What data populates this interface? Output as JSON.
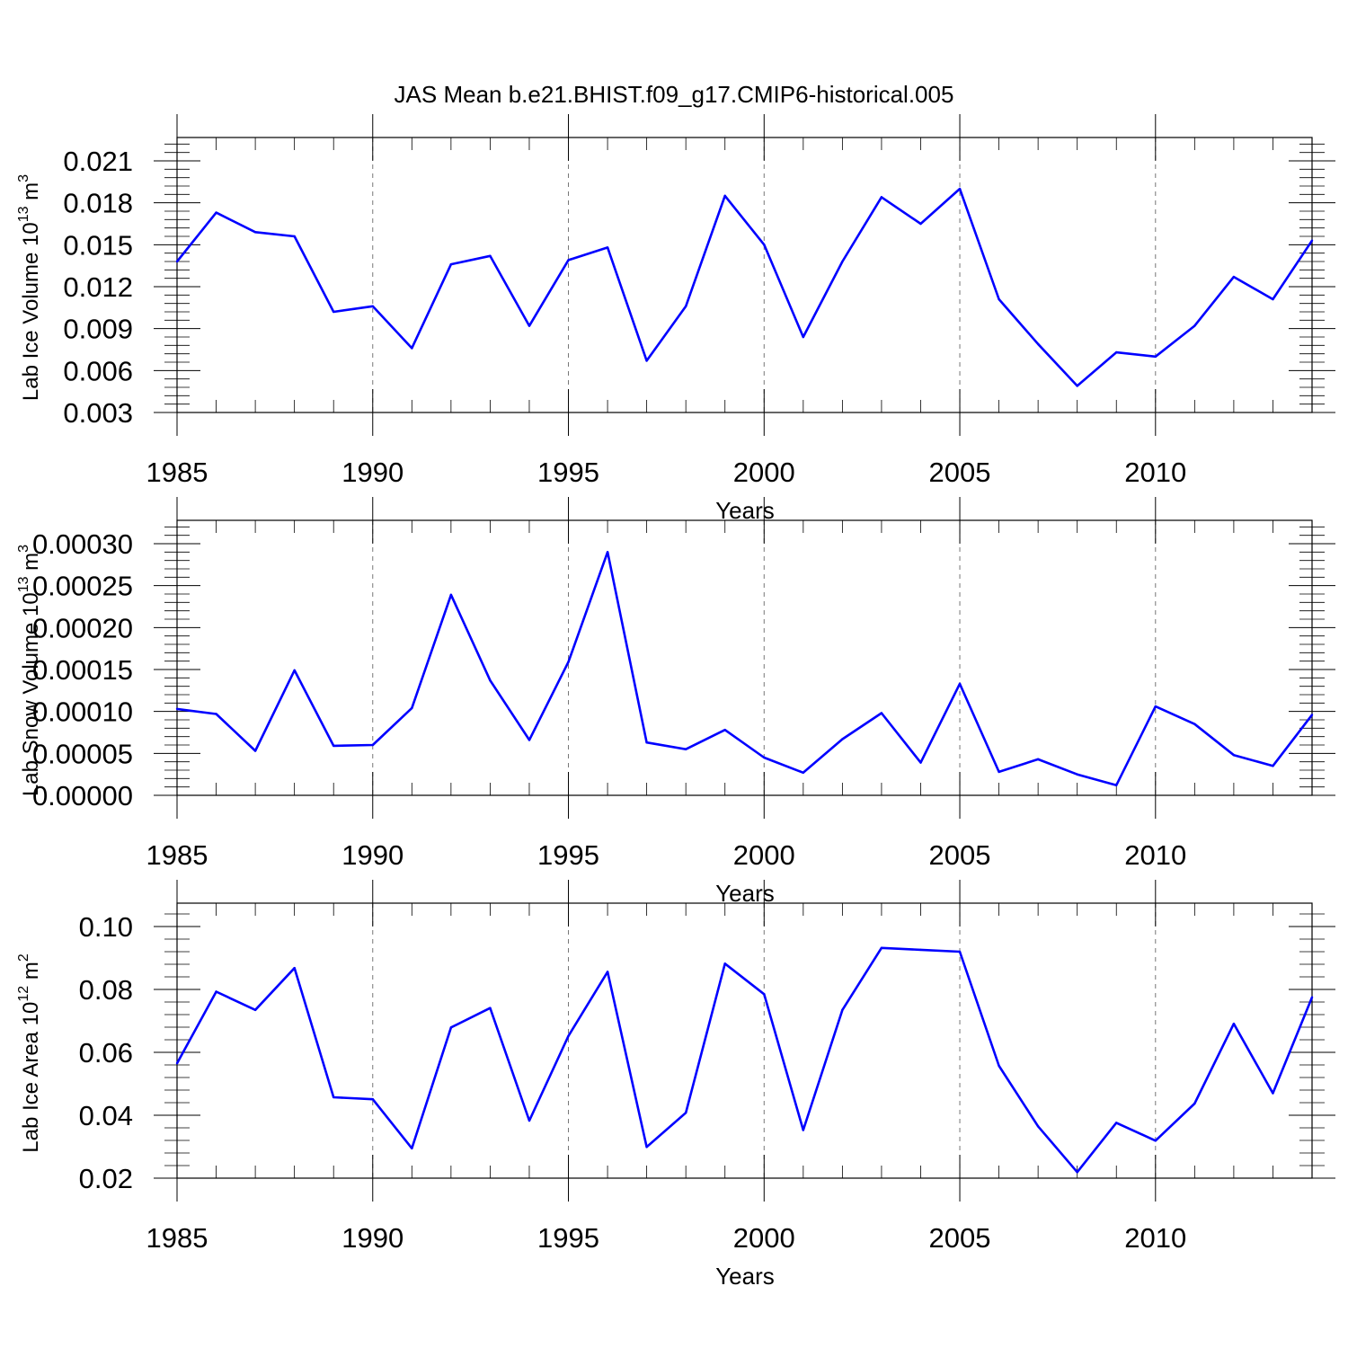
{
  "title": "JAS Mean b.e21.BHIST.f09_g17.CMIP6-historical.005",
  "colors": {
    "line": "#0000ff",
    "grid": "#777777"
  },
  "chart_data": [
    {
      "type": "line",
      "xlabel": "Years",
      "ylabel": "Lab Ice Volume 10",
      "ylabel_exp": "13",
      "ylabel_unit": " m",
      "ylabel_unit_exp": "3",
      "xlim": [
        1985,
        2014
      ],
      "ylim": [
        0.003,
        0.021
      ],
      "xticks": [
        1985,
        1990,
        1995,
        2000,
        2005,
        2010
      ],
      "xtick_labels": [
        "1985",
        "1990",
        "1995",
        "2000",
        "2005",
        "2010"
      ],
      "yticks": [
        0.003,
        0.006,
        0.009,
        0.012,
        0.015,
        0.018,
        0.021
      ],
      "ytick_labels": [
        "0.003",
        "0.006",
        "0.009",
        "0.012",
        "0.015",
        "0.018",
        "0.021"
      ],
      "grid": "vertical dashed at major x ticks",
      "x": [
        1985,
        1986,
        1987,
        1988,
        1989,
        1990,
        1991,
        1992,
        1993,
        1994,
        1995,
        1996,
        1997,
        1998,
        1999,
        2000,
        2001,
        2002,
        2003,
        2004,
        2005,
        2006,
        2007,
        2008,
        2009,
        2010,
        2011,
        2012,
        2013,
        2014
      ],
      "values": [
        0.0138,
        0.0173,
        0.0159,
        0.0156,
        0.0102,
        0.0106,
        0.0076,
        0.0136,
        0.0142,
        0.0092,
        0.0139,
        0.0148,
        0.0067,
        0.0106,
        0.0185,
        0.015,
        0.0084,
        0.0138,
        0.0184,
        0.0165,
        0.019,
        0.0111,
        0.0079,
        0.0049,
        0.0073,
        0.007,
        0.0092,
        0.0127,
        0.0111,
        0.0153
      ]
    },
    {
      "type": "line",
      "xlabel": "Years",
      "ylabel": "Lab Snow Volume 10",
      "ylabel_exp": "13",
      "ylabel_unit": " m",
      "ylabel_unit_exp": "3",
      "xlim": [
        1985,
        2014
      ],
      "ylim": [
        0.0,
        0.0003
      ],
      "xticks": [
        1985,
        1990,
        1995,
        2000,
        2005,
        2010
      ],
      "xtick_labels": [
        "1985",
        "1990",
        "1995",
        "2000",
        "2005",
        "2010"
      ],
      "yticks": [
        0.0,
        5e-05,
        0.0001,
        0.00015,
        0.0002,
        0.00025,
        0.0003
      ],
      "ytick_labels": [
        "0.00000",
        "0.00005",
        "0.00010",
        "0.00015",
        "0.00020",
        "0.00025",
        "0.00030"
      ],
      "grid": "vertical dashed at major x ticks",
      "x": [
        1985,
        1986,
        1987,
        1988,
        1989,
        1990,
        1991,
        1992,
        1993,
        1994,
        1995,
        1996,
        1997,
        1998,
        1999,
        2000,
        2001,
        2002,
        2003,
        2004,
        2005,
        2006,
        2007,
        2008,
        2009,
        2010,
        2011,
        2012,
        2013,
        2014
      ],
      "values": [
        0.000103,
        9.7e-05,
        5.3e-05,
        0.000149,
        5.9e-05,
        6e-05,
        0.000104,
        0.000239,
        0.000137,
        6.6e-05,
        0.000159,
        0.00029,
        6.3e-05,
        5.5e-05,
        7.8e-05,
        4.5e-05,
        2.7e-05,
        6.7e-05,
        9.8e-05,
        3.9e-05,
        0.000133,
        2.8e-05,
        4.3e-05,
        2.5e-05,
        1.2e-05,
        0.000106,
        8.5e-05,
        4.8e-05,
        3.5e-05,
        9.6e-05
      ]
    },
    {
      "type": "line",
      "xlabel": "Years",
      "ylabel": "Lab Ice Area 10",
      "ylabel_exp": "12",
      "ylabel_unit": " m",
      "ylabel_unit_exp": "2",
      "xlim": [
        1985,
        2014
      ],
      "ylim": [
        0.02,
        0.1
      ],
      "xticks": [
        1985,
        1990,
        1995,
        2000,
        2005,
        2010
      ],
      "xtick_labels": [
        "1985",
        "1990",
        "1995",
        "2000",
        "2005",
        "2010"
      ],
      "yticks": [
        0.02,
        0.04,
        0.06,
        0.08,
        0.1
      ],
      "ytick_labels": [
        "0.02",
        "0.04",
        "0.06",
        "0.08",
        "0.10"
      ],
      "grid": "vertical dashed at major x ticks",
      "x": [
        1985,
        1986,
        1987,
        1988,
        1989,
        1990,
        1991,
        1992,
        1993,
        1994,
        1995,
        1996,
        1997,
        1998,
        1999,
        2000,
        2001,
        2002,
        2003,
        2004,
        2005,
        2006,
        2007,
        2008,
        2009,
        2010,
        2011,
        2012,
        2013,
        2014
      ],
      "values": [
        0.0565,
        0.0793,
        0.0735,
        0.0868,
        0.0457,
        0.0451,
        0.0295,
        0.0679,
        0.0741,
        0.0383,
        0.0652,
        0.0856,
        0.0299,
        0.0408,
        0.0882,
        0.0785,
        0.0353,
        0.0735,
        0.0932,
        0.0926,
        0.092,
        0.0557,
        0.0365,
        0.0219,
        0.0376,
        0.0319,
        0.0437,
        0.0691,
        0.047,
        0.0775
      ]
    }
  ]
}
